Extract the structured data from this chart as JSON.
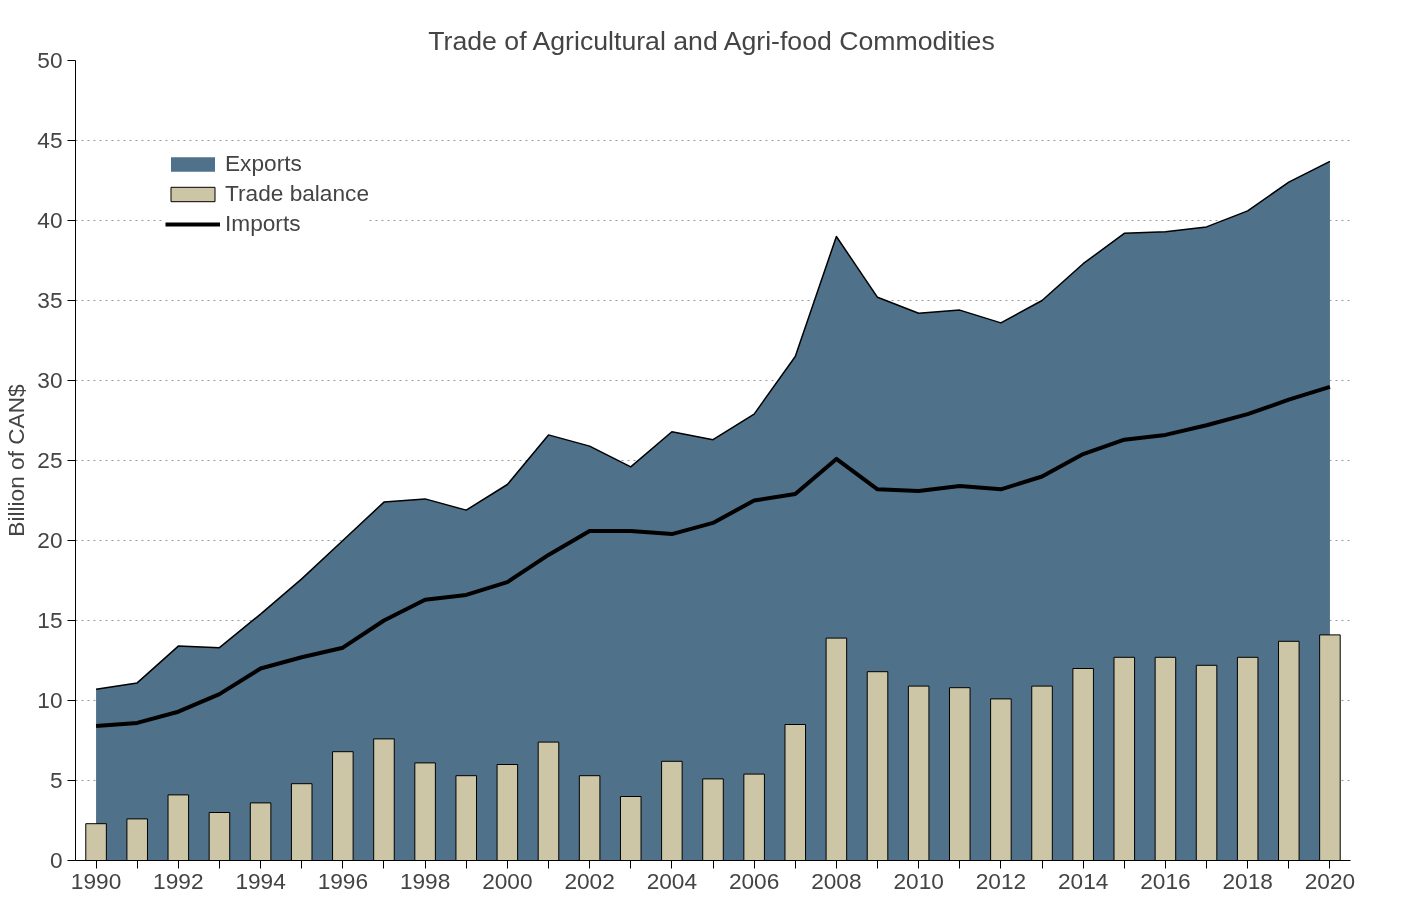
{
  "chart_data": {
    "type": "area",
    "title": "Trade of Agricultural and Agri-food Commodities",
    "ylabel": "Billion of CAN$",
    "x": [
      1990,
      1991,
      1992,
      1993,
      1994,
      1995,
      1996,
      1997,
      1998,
      1999,
      2000,
      2001,
      2002,
      2003,
      2004,
      2005,
      2006,
      2007,
      2008,
      2009,
      2010,
      2011,
      2012,
      2013,
      2014,
      2015,
      2016,
      2017,
      2018,
      2019,
      2020
    ],
    "series": [
      {
        "name": "Exports",
        "color": "#4f7189",
        "values": [
          10.7,
          11.1,
          13.4,
          13.3,
          15.4,
          17.6,
          20.0,
          22.4,
          22.6,
          21.9,
          23.5,
          26.6,
          25.9,
          24.6,
          26.8,
          26.3,
          27.9,
          31.5,
          39.0,
          35.2,
          34.2,
          34.4,
          33.6,
          35.0,
          37.3,
          39.2,
          39.3,
          39.6,
          40.6,
          42.4,
          43.7
        ]
      },
      {
        "name": "Trade balance",
        "type": "bar",
        "color": "#cdc6a6",
        "values": [
          2.3,
          2.6,
          4.1,
          3.0,
          3.6,
          4.8,
          6.8,
          7.6,
          6.1,
          5.3,
          6.0,
          7.4,
          5.3,
          4.0,
          6.2,
          5.1,
          5.4,
          8.5,
          13.9,
          11.8,
          10.9,
          10.8,
          10.1,
          10.9,
          12.0,
          12.7,
          12.7,
          12.2,
          12.7,
          13.7,
          14.1
        ]
      },
      {
        "name": "Imports",
        "type": "line",
        "color": "#000000",
        "values": [
          8.4,
          8.6,
          9.3,
          10.4,
          12.0,
          12.7,
          13.3,
          15.0,
          16.3,
          16.6,
          17.4,
          19.1,
          20.6,
          20.6,
          20.4,
          21.1,
          22.5,
          22.9,
          25.1,
          23.2,
          23.1,
          23.4,
          23.2,
          24.0,
          25.4,
          26.3,
          26.6,
          27.2,
          27.9,
          28.8,
          29.6
        ]
      }
    ],
    "xlim": [
      1989.5,
      2020.5
    ],
    "xticks": [
      1990,
      {
        "value": 1991,
        "label": null
      },
      1992,
      {
        "value": 1993,
        "label": null
      },
      1994,
      {
        "value": 1995,
        "label": null
      },
      1996,
      {
        "value": 1997,
        "label": null
      },
      1998,
      {
        "value": 1999,
        "label": null
      },
      2000,
      {
        "value": 2001,
        "label": null
      },
      2002,
      {
        "value": 2003,
        "label": null
      },
      2004,
      {
        "value": 2005,
        "label": null
      },
      2006,
      {
        "value": 2007,
        "label": null
      },
      2008,
      {
        "value": 2009,
        "label": null
      },
      2010,
      {
        "value": 2011,
        "label": null
      },
      2012,
      {
        "value": 2013,
        "label": null
      },
      2014,
      {
        "value": 2015,
        "label": null
      },
      2016,
      {
        "value": 2017,
        "label": null
      },
      2018,
      {
        "value": 2019,
        "label": null
      },
      2020
    ],
    "ylim": [
      0,
      50
    ],
    "yticks": [
      0,
      5,
      10,
      15,
      20,
      25,
      30,
      35,
      40,
      45,
      50
    ],
    "grid": "y",
    "legend": "top left"
  }
}
